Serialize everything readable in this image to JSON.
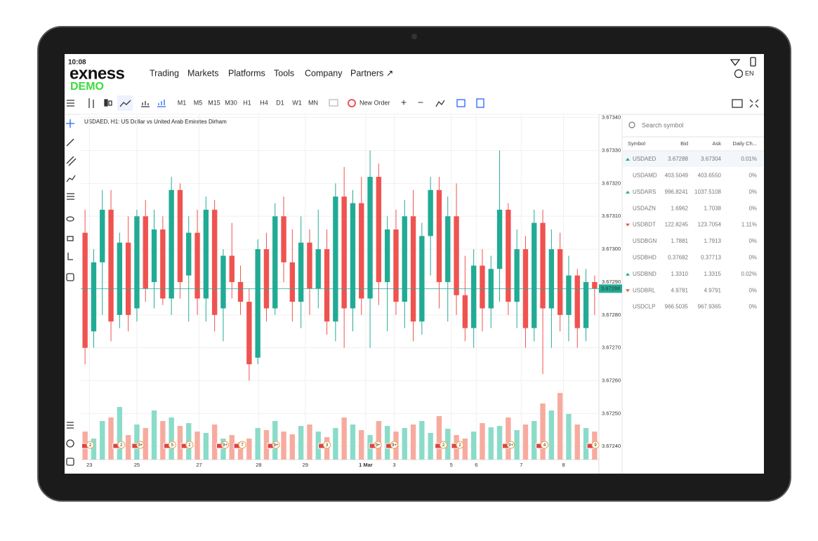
{
  "header": {
    "time": "10:08",
    "logo": "exness",
    "badge": "DEMO",
    "nav": [
      "Trading",
      "Markets",
      "Platforms",
      "Tools",
      "Company",
      "Partners ↗"
    ],
    "language": "EN"
  },
  "toolbar": {
    "timeframes": [
      {
        "label": "M1"
      },
      {
        "label": "M5"
      },
      {
        "label": "M15"
      },
      {
        "label": "M30"
      },
      {
        "label": "H1",
        "active": true
      },
      {
        "label": "H4"
      },
      {
        "label": "D1"
      },
      {
        "label": "W1"
      },
      {
        "label": "MN"
      }
    ],
    "new_order": "New Order",
    "zoom_in": "+",
    "zoom_out": "−"
  },
  "chart_data": {
    "type": "candlestick",
    "title": "USDAED, H1: US Dollar vs United Arab Emirates Dirham",
    "up_color": "#22ab94",
    "down_color": "#ef5350",
    "up_volume_color": "#8adcc9",
    "down_volume_color": "#f7ab9f",
    "xlim": [
      0,
      60
    ],
    "xticks": [
      {
        "value": 1,
        "label": "23"
      },
      {
        "value": 6.5,
        "label": "25"
      },
      {
        "value": 13.7,
        "label": "27"
      },
      {
        "value": 20.6,
        "label": "28"
      },
      {
        "value": 26,
        "label": "29"
      },
      {
        "value": 33,
        "label": "1 Mar"
      },
      {
        "value": 36.3,
        "label": "3"
      },
      {
        "value": 42.9,
        "label": "5"
      },
      {
        "value": 45.8,
        "label": "6"
      },
      {
        "value": 51,
        "label": "7"
      },
      {
        "value": 55.9,
        "label": "8"
      }
    ],
    "ylim": [
      3.67236,
      3.67341
    ],
    "yticks": [
      {
        "value": 3.6734,
        "label": "3.67340"
      },
      {
        "value": 3.6733,
        "label": "3.67330"
      },
      {
        "value": 3.6732,
        "label": "3.67320"
      },
      {
        "value": 3.6731,
        "label": "3.67310"
      },
      {
        "value": 3.673,
        "label": "3.67300"
      },
      {
        "value": 3.6729,
        "label": "3.67290"
      },
      {
        "value": 3.6728,
        "label": "3.67280"
      },
      {
        "value": 3.6727,
        "label": "3.67270"
      },
      {
        "value": 3.6726,
        "label": "3.67260"
      },
      {
        "value": 3.6725,
        "label": "3.67250"
      },
      {
        "value": 3.6724,
        "label": "3.67240"
      }
    ],
    "grid": true,
    "last_price": 3.67288,
    "open": [
      3.67305,
      3.67275,
      3.67296,
      3.67312,
      3.6728,
      3.67302,
      3.67282,
      3.6731,
      3.6729,
      3.67306,
      3.67285,
      3.67318,
      3.67292,
      3.67305,
      3.67285,
      3.67312,
      3.67282,
      3.67298,
      3.6729,
      3.67284,
      3.67267,
      3.673,
      3.67282,
      3.6731,
      3.67296,
      3.67284,
      3.67302,
      3.67288,
      3.673,
      3.67278,
      3.67316,
      3.67282,
      3.67314,
      3.67285,
      3.67322,
      3.6729,
      3.67306,
      3.67284,
      3.6731,
      3.67278,
      3.67304,
      3.67318,
      3.6729,
      3.6731,
      3.67286,
      3.67276,
      3.67295,
      3.67282,
      3.67294,
      3.67312,
      3.67284,
      3.673,
      3.67276,
      3.67308,
      3.67282,
      3.673,
      3.6728,
      3.67292,
      3.67276,
      3.6729
    ],
    "high": [
      3.67312,
      3.673,
      3.67318,
      3.67318,
      3.67305,
      3.6731,
      3.67312,
      3.67315,
      3.67312,
      3.6731,
      3.67322,
      3.6732,
      3.6731,
      3.67312,
      3.67316,
      3.67315,
      3.673,
      3.67308,
      3.67295,
      3.67288,
      3.67303,
      3.67305,
      3.67314,
      3.67316,
      3.67306,
      3.6731,
      3.67306,
      3.67312,
      3.67306,
      3.6732,
      3.67325,
      3.67318,
      3.67322,
      3.6733,
      3.67326,
      3.6731,
      3.67312,
      3.67315,
      3.67318,
      3.67308,
      3.67322,
      3.67322,
      3.67316,
      3.6732,
      3.67298,
      3.673,
      3.673,
      3.67298,
      3.6733,
      3.67314,
      3.67306,
      3.67304,
      3.67312,
      3.67312,
      3.67306,
      3.67305,
      3.67298,
      3.67294,
      3.67294,
      3.67292
    ],
    "low": [
      3.67265,
      3.6727,
      3.6728,
      3.67272,
      3.67276,
      3.67275,
      3.67278,
      3.67284,
      3.67282,
      3.67283,
      3.6728,
      3.67285,
      3.67278,
      3.6728,
      3.67278,
      3.67275,
      3.67272,
      3.67285,
      3.6728,
      3.6726,
      3.67265,
      3.67278,
      3.6728,
      3.6729,
      3.67278,
      3.67276,
      3.6728,
      3.67282,
      3.67274,
      3.67272,
      3.6727,
      3.67275,
      3.6728,
      3.6727,
      3.67283,
      3.67275,
      3.6728,
      3.67276,
      3.67272,
      3.67274,
      3.67292,
      3.67282,
      3.67278,
      3.6728,
      3.67272,
      3.6727,
      3.67275,
      3.67276,
      3.67284,
      3.6728,
      3.67276,
      3.6727,
      3.67272,
      3.67262,
      3.6727,
      3.67275,
      3.67272,
      3.6727,
      3.67272,
      3.6728
    ],
    "close": [
      3.6727,
      3.67296,
      3.67312,
      3.67278,
      3.67302,
      3.6728,
      3.6731,
      3.67288,
      3.67306,
      3.67285,
      3.67318,
      3.6729,
      3.67305,
      3.67285,
      3.67312,
      3.6728,
      3.67298,
      3.6729,
      3.67284,
      3.67265,
      3.673,
      3.67282,
      3.6731,
      3.67296,
      3.67284,
      3.67302,
      3.67288,
      3.673,
      3.67278,
      3.67316,
      3.67282,
      3.67314,
      3.67285,
      3.67322,
      3.6729,
      3.67306,
      3.67284,
      3.6731,
      3.67278,
      3.67304,
      3.67318,
      3.6729,
      3.6731,
      3.67286,
      3.67276,
      3.67295,
      3.67282,
      3.67294,
      3.67312,
      3.67284,
      3.673,
      3.67276,
      3.67308,
      3.67282,
      3.673,
      3.6728,
      3.67292,
      3.67276,
      3.6729,
      3.67288
    ],
    "volume": [
      40,
      30,
      55,
      60,
      75,
      35,
      50,
      45,
      70,
      55,
      60,
      48,
      52,
      40,
      38,
      50,
      30,
      35,
      25,
      30,
      45,
      42,
      55,
      40,
      36,
      48,
      50,
      40,
      32,
      45,
      60,
      50,
      42,
      35,
      55,
      48,
      40,
      45,
      50,
      55,
      38,
      62,
      44,
      35,
      30,
      40,
      52,
      46,
      48,
      60,
      42,
      50,
      55,
      80,
      70,
      95,
      65,
      50,
      45,
      40
    ],
    "events": [
      {
        "x": 1.1,
        "label": "2"
      },
      {
        "x": 4.7,
        "label": "2"
      },
      {
        "x": 6.9,
        "label": "9+"
      },
      {
        "x": 10.6,
        "label": "5"
      },
      {
        "x": 12.6,
        "label": "2"
      },
      {
        "x": 16.7,
        "label": "9+"
      },
      {
        "x": 18.7,
        "label": "7"
      },
      {
        "x": 22.6,
        "label": "9+"
      },
      {
        "x": 28.5,
        "label": "3"
      },
      {
        "x": 34.4,
        "label": "9+"
      },
      {
        "x": 36.3,
        "label": "9+"
      },
      {
        "x": 42,
        "label": "2"
      },
      {
        "x": 43.9,
        "label": "2"
      },
      {
        "x": 49.8,
        "label": "9+"
      },
      {
        "x": 53.7,
        "label": "4"
      },
      {
        "x": 59.6,
        "label": "9"
      }
    ]
  },
  "watchlist": {
    "search_placeholder": "Search symbol",
    "columns": [
      "Symbol",
      "Bid",
      "Ask",
      "Daily Ch..."
    ],
    "rows": [
      {
        "symbol": "USDAED",
        "bid": "3.67288",
        "ask": "3.67304",
        "change": "0.01%",
        "trend": "up"
      },
      {
        "symbol": "USDAMD",
        "bid": "403.5049",
        "ask": "403.6550",
        "change": "0%",
        "trend": "none"
      },
      {
        "symbol": "USDARS",
        "bid": "996.8241",
        "ask": "1037.5108",
        "change": "0%",
        "trend": "up"
      },
      {
        "symbol": "USDAZN",
        "bid": "1.6962",
        "ask": "1.7038",
        "change": "0%",
        "trend": "none"
      },
      {
        "symbol": "USDBDT",
        "bid": "122.8245",
        "ask": "123.7054",
        "change": "1.11%",
        "trend": "down"
      },
      {
        "symbol": "USDBGN",
        "bid": "1.7881",
        "ask": "1.7913",
        "change": "0%",
        "trend": "none"
      },
      {
        "symbol": "USDBHD",
        "bid": "0.37682",
        "ask": "0.37713",
        "change": "0%",
        "trend": "none"
      },
      {
        "symbol": "USDBND",
        "bid": "1.3310",
        "ask": "1.3315",
        "change": "0.02%",
        "trend": "up"
      },
      {
        "symbol": "USDBRL",
        "bid": "4.9781",
        "ask": "4.9791",
        "change": "0%",
        "trend": "down"
      },
      {
        "symbol": "USDCLP",
        "bid": "966.5035",
        "ask": "967.9365",
        "change": "0%",
        "trend": "none"
      }
    ]
  }
}
